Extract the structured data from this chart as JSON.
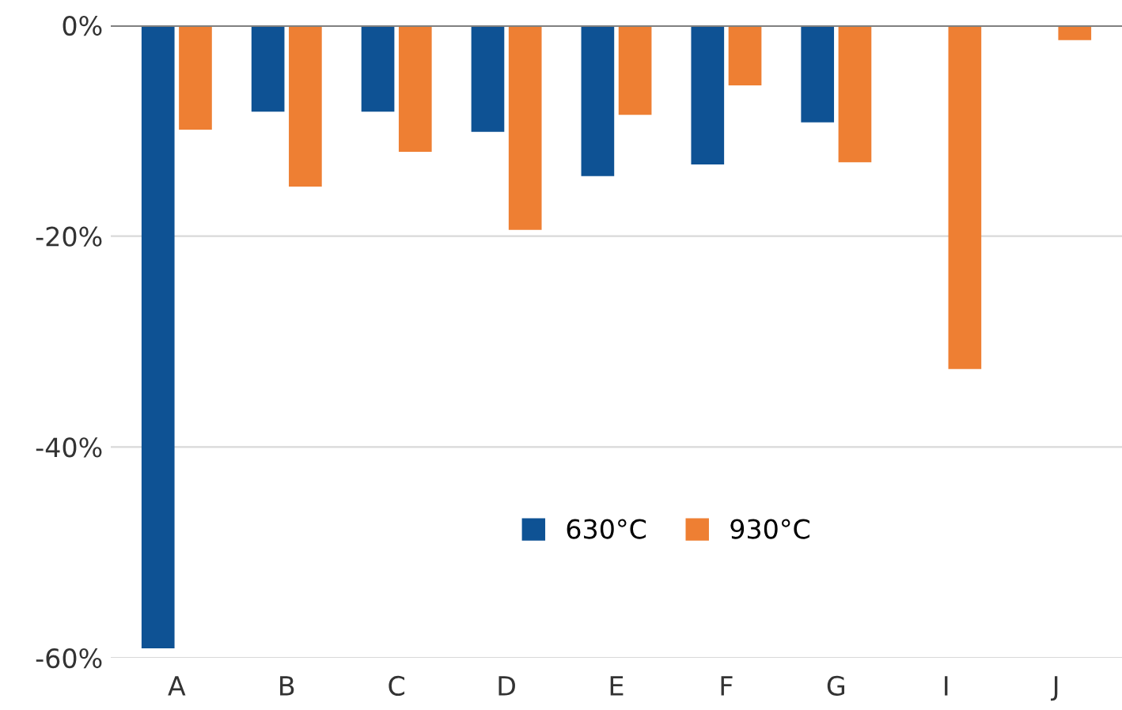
{
  "chart_data": {
    "type": "bar",
    "categories": [
      "A",
      "B",
      "C",
      "D",
      "E",
      "F",
      "G",
      "I",
      "J"
    ],
    "series": [
      {
        "name": "630°C",
        "color": "#0e5294",
        "values": [
          -59.1,
          -8.2,
          -8.2,
          -10.1,
          -14.3,
          -13.2,
          -9.2,
          null,
          null
        ]
      },
      {
        "name": "930°C",
        "color": "#ee7f33",
        "values": [
          -9.9,
          -15.3,
          -12.0,
          -19.4,
          -8.5,
          -5.7,
          -13.0,
          -32.6,
          -1.4
        ]
      }
    ],
    "ylim": [
      -60,
      0
    ],
    "yticks": [
      {
        "value": -60,
        "label": "-60%"
      },
      {
        "value": -40,
        "label": "-40%"
      },
      {
        "value": -20,
        "label": "-20%"
      },
      {
        "value": 0,
        "label": "0%"
      }
    ],
    "grid": "y",
    "legend": "bottom"
  }
}
